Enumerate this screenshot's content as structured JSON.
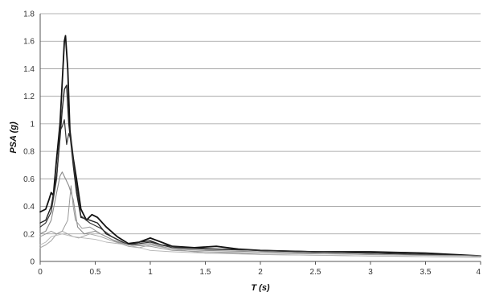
{
  "chart_data": {
    "type": "line",
    "xlabel": "T (s)",
    "ylabel": "PSA (g)",
    "xlim": [
      0,
      4
    ],
    "ylim": [
      0,
      1.8
    ],
    "x_ticks": [
      0,
      0.5,
      1,
      1.5,
      2,
      2.5,
      3,
      3.5,
      4
    ],
    "x_tick_labels": [
      "0",
      "0.5",
      "1",
      "1.5",
      "2",
      "2.5",
      "3",
      "3.5",
      "4"
    ],
    "y_ticks": [
      0,
      0.2,
      0.4,
      0.6,
      0.8,
      1,
      1.2,
      1.4,
      1.6,
      1.8
    ],
    "y_tick_labels": [
      "0",
      "0.2",
      "0.4",
      "0.6",
      "0.8",
      "1",
      "1.2",
      "1.4",
      "1.6",
      "1.8"
    ],
    "grid": {
      "horizontal": true,
      "vertical": false
    },
    "series": [
      {
        "color": "#111111",
        "width": 1.8,
        "points": [
          [
            0,
            0.36
          ],
          [
            0.05,
            0.38
          ],
          [
            0.08,
            0.45
          ],
          [
            0.1,
            0.5
          ],
          [
            0.12,
            0.48
          ],
          [
            0.15,
            0.75
          ],
          [
            0.18,
            1.0
          ],
          [
            0.2,
            1.3
          ],
          [
            0.22,
            1.6
          ],
          [
            0.23,
            1.64
          ],
          [
            0.25,
            1.4
          ],
          [
            0.27,
            0.95
          ],
          [
            0.3,
            0.75
          ],
          [
            0.33,
            0.6
          ],
          [
            0.37,
            0.38
          ],
          [
            0.42,
            0.3
          ],
          [
            0.47,
            0.34
          ],
          [
            0.52,
            0.32
          ],
          [
            0.6,
            0.25
          ],
          [
            0.7,
            0.18
          ],
          [
            0.8,
            0.13
          ],
          [
            0.9,
            0.14
          ],
          [
            1.0,
            0.17
          ],
          [
            1.1,
            0.14
          ],
          [
            1.2,
            0.11
          ],
          [
            1.4,
            0.1
          ],
          [
            1.6,
            0.11
          ],
          [
            1.8,
            0.09
          ],
          [
            2.0,
            0.08
          ],
          [
            2.5,
            0.07
          ],
          [
            3.0,
            0.07
          ],
          [
            3.5,
            0.06
          ],
          [
            4.0,
            0.04
          ]
        ]
      },
      {
        "color": "#222222",
        "width": 1.4,
        "points": [
          [
            0,
            0.28
          ],
          [
            0.05,
            0.3
          ],
          [
            0.1,
            0.4
          ],
          [
            0.15,
            0.62
          ],
          [
            0.18,
            0.9
          ],
          [
            0.2,
            1.1
          ],
          [
            0.22,
            1.25
          ],
          [
            0.24,
            1.28
          ],
          [
            0.26,
            1.0
          ],
          [
            0.28,
            0.85
          ],
          [
            0.3,
            0.7
          ],
          [
            0.33,
            0.5
          ],
          [
            0.37,
            0.32
          ],
          [
            0.45,
            0.3
          ],
          [
            0.52,
            0.28
          ],
          [
            0.6,
            0.2
          ],
          [
            0.7,
            0.16
          ],
          [
            0.8,
            0.12
          ],
          [
            0.9,
            0.14
          ],
          [
            1.0,
            0.15
          ],
          [
            1.1,
            0.12
          ],
          [
            1.3,
            0.1
          ],
          [
            1.6,
            0.09
          ],
          [
            2.0,
            0.08
          ],
          [
            2.5,
            0.07
          ],
          [
            3.0,
            0.06
          ],
          [
            3.5,
            0.05
          ],
          [
            4.0,
            0.04
          ]
        ]
      },
      {
        "color": "#333333",
        "width": 1.2,
        "points": [
          [
            0,
            0.25
          ],
          [
            0.05,
            0.28
          ],
          [
            0.1,
            0.36
          ],
          [
            0.15,
            0.6
          ],
          [
            0.18,
            0.95
          ],
          [
            0.2,
            0.98
          ],
          [
            0.22,
            1.03
          ],
          [
            0.24,
            0.85
          ],
          [
            0.26,
            0.93
          ],
          [
            0.28,
            0.88
          ],
          [
            0.3,
            0.72
          ],
          [
            0.33,
            0.55
          ],
          [
            0.37,
            0.33
          ],
          [
            0.45,
            0.28
          ],
          [
            0.55,
            0.24
          ],
          [
            0.65,
            0.18
          ],
          [
            0.8,
            0.12
          ],
          [
            0.9,
            0.13
          ],
          [
            1.0,
            0.14
          ],
          [
            1.2,
            0.1
          ],
          [
            1.5,
            0.09
          ],
          [
            2.0,
            0.08
          ],
          [
            3.0,
            0.06
          ],
          [
            4.0,
            0.04
          ]
        ]
      },
      {
        "color": "#8a8a8a",
        "width": 1.1,
        "points": [
          [
            0,
            0.2
          ],
          [
            0.05,
            0.22
          ],
          [
            0.1,
            0.3
          ],
          [
            0.15,
            0.5
          ],
          [
            0.18,
            0.62
          ],
          [
            0.2,
            0.65
          ],
          [
            0.23,
            0.6
          ],
          [
            0.26,
            0.55
          ],
          [
            0.3,
            0.45
          ],
          [
            0.34,
            0.25
          ],
          [
            0.4,
            0.2
          ],
          [
            0.5,
            0.22
          ],
          [
            0.6,
            0.18
          ],
          [
            0.7,
            0.14
          ],
          [
            0.8,
            0.12
          ],
          [
            0.9,
            0.12
          ],
          [
            1.0,
            0.13
          ],
          [
            1.2,
            0.09
          ],
          [
            1.5,
            0.08
          ],
          [
            2.0,
            0.07
          ],
          [
            3.0,
            0.05
          ],
          [
            4.0,
            0.04
          ]
        ]
      },
      {
        "color": "#a5a5a5",
        "width": 1.0,
        "points": [
          [
            0,
            0.1
          ],
          [
            0.05,
            0.12
          ],
          [
            0.1,
            0.15
          ],
          [
            0.15,
            0.2
          ],
          [
            0.2,
            0.22
          ],
          [
            0.25,
            0.2
          ],
          [
            0.3,
            0.18
          ],
          [
            0.35,
            0.17
          ],
          [
            0.45,
            0.2
          ],
          [
            0.55,
            0.18
          ],
          [
            0.65,
            0.15
          ],
          [
            0.8,
            0.11
          ],
          [
            0.9,
            0.1
          ],
          [
            1.0,
            0.12
          ],
          [
            1.2,
            0.09
          ],
          [
            1.5,
            0.06
          ],
          [
            1.8,
            0.06
          ],
          [
            2.0,
            0.05
          ],
          [
            3.0,
            0.04
          ],
          [
            4.0,
            0.03
          ]
        ]
      },
      {
        "color": "#9a9a9a",
        "width": 1.0,
        "points": [
          [
            0,
            0.18
          ],
          [
            0.05,
            0.2
          ],
          [
            0.1,
            0.22
          ],
          [
            0.15,
            0.2
          ],
          [
            0.2,
            0.22
          ],
          [
            0.25,
            0.3
          ],
          [
            0.28,
            0.55
          ],
          [
            0.3,
            0.4
          ],
          [
            0.32,
            0.3
          ],
          [
            0.38,
            0.24
          ],
          [
            0.45,
            0.25
          ],
          [
            0.55,
            0.2
          ],
          [
            0.65,
            0.16
          ],
          [
            0.8,
            0.12
          ],
          [
            1.0,
            0.11
          ],
          [
            1.2,
            0.08
          ],
          [
            1.5,
            0.07
          ],
          [
            2.0,
            0.06
          ],
          [
            3.0,
            0.05
          ],
          [
            4.0,
            0.04
          ]
        ]
      },
      {
        "color": "#b5b5b5",
        "width": 0.9,
        "points": [
          [
            0,
            0.12
          ],
          [
            0.05,
            0.14
          ],
          [
            0.1,
            0.18
          ],
          [
            0.2,
            0.2
          ],
          [
            0.3,
            0.18
          ],
          [
            0.4,
            0.17
          ],
          [
            0.5,
            0.16
          ],
          [
            0.6,
            0.14
          ],
          [
            0.8,
            0.12
          ],
          [
            1.0,
            0.08
          ],
          [
            1.2,
            0.07
          ],
          [
            1.5,
            0.06
          ],
          [
            2.0,
            0.05
          ],
          [
            3.0,
            0.04
          ],
          [
            4.0,
            0.03
          ]
        ]
      }
    ]
  }
}
